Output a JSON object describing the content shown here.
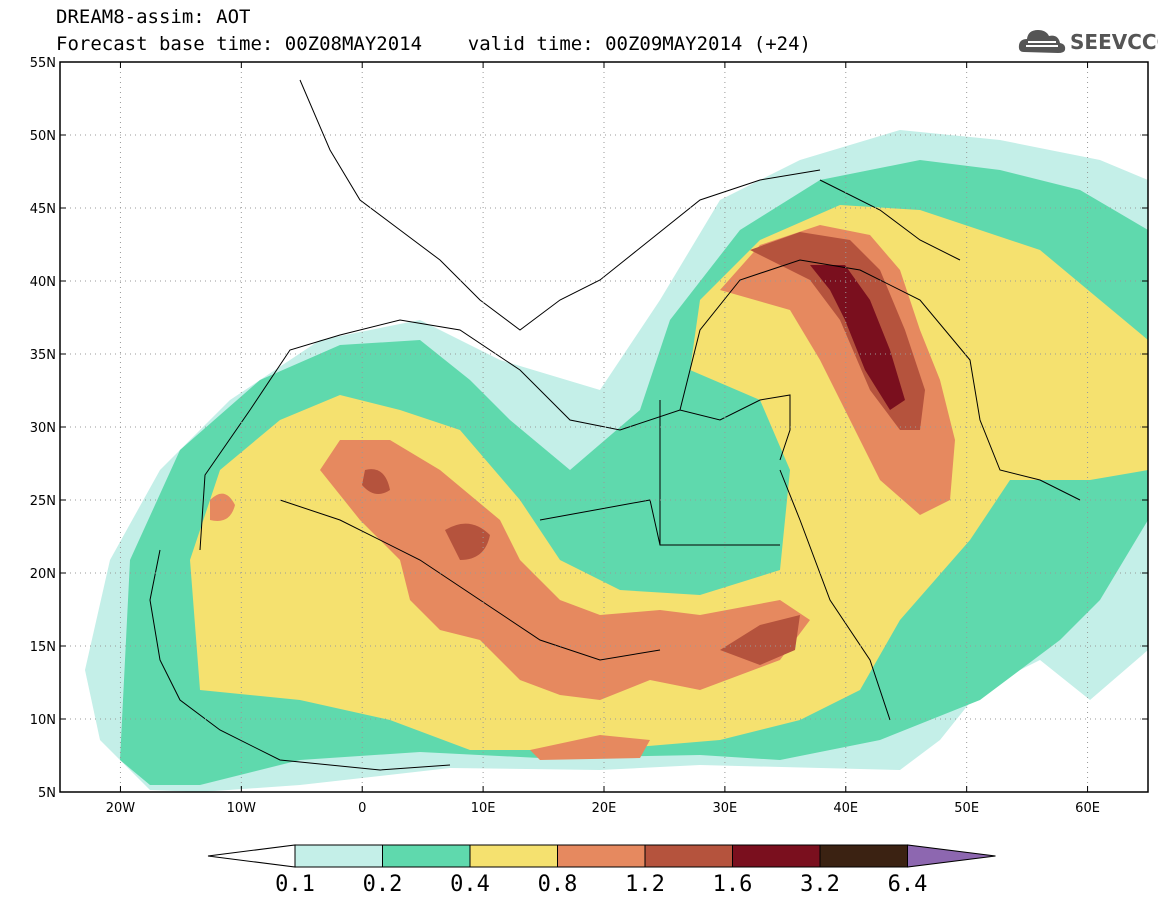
{
  "header": {
    "line1": "DREAM8-assim: AOT",
    "line2": "Forecast base time: 00Z08MAY2014    valid time: 00Z09MAY2014 (+24)"
  },
  "logo": {
    "text": "SEEVCCC",
    "icon": "cloud-icon"
  },
  "map": {
    "lat_ticks": [
      "55N",
      "50N",
      "45N",
      "40N",
      "35N",
      "30N",
      "25N",
      "20N",
      "15N",
      "10N",
      "5N"
    ],
    "lon_ticks": [
      "20W",
      "10W",
      "0",
      "10E",
      "20E",
      "30E",
      "40E",
      "50E",
      "60E"
    ]
  },
  "colorbar": {
    "labels": [
      "0.1",
      "0.2",
      "0.4",
      "0.8",
      "1.2",
      "1.6",
      "3.2",
      "6.4"
    ],
    "colors": [
      "#ffffff",
      "#c4efe8",
      "#5fd9ad",
      "#f5e16f",
      "#e6895f",
      "#b5533d",
      "#7a0f1e",
      "#3b2212",
      "#8d67b0"
    ]
  }
}
